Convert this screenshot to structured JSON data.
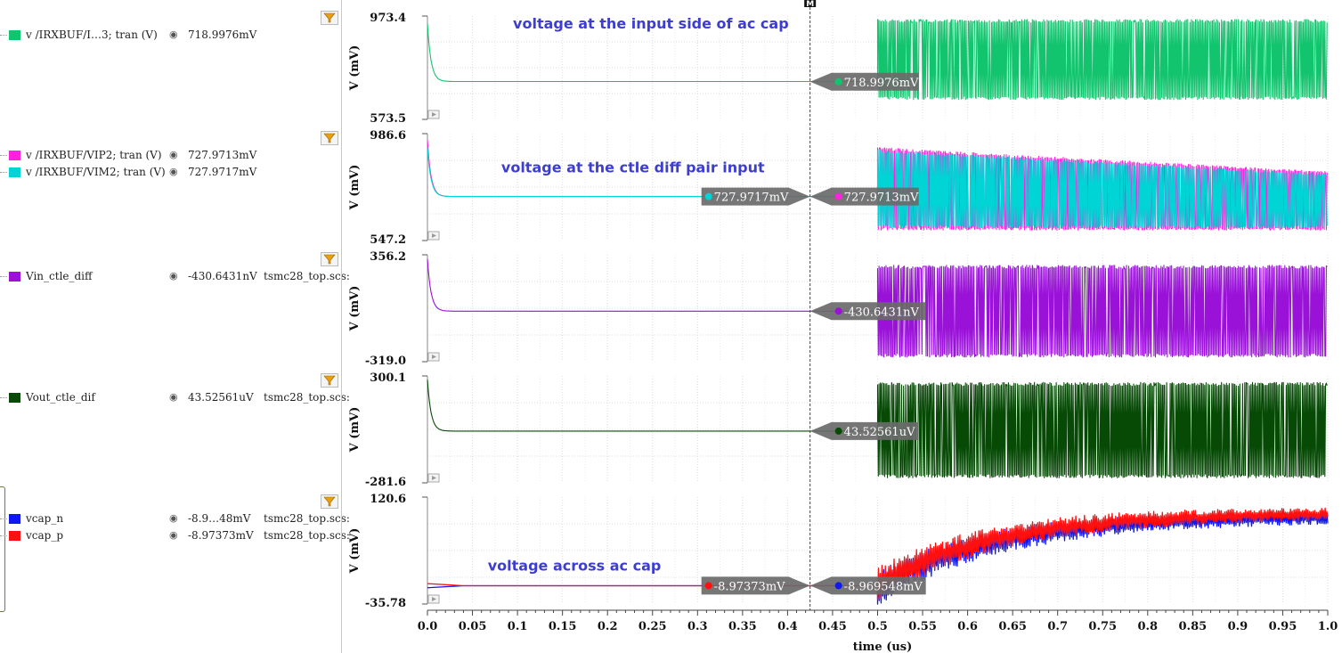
{
  "legend": {
    "strips": [
      {
        "entries": [
          {
            "name": "v /IRXBUF/I…3; tran (V)",
            "value": "718.9976mV",
            "source": "",
            "color": "#13c46e"
          }
        ]
      },
      {
        "entries": [
          {
            "name": "v /IRXBUF/VIP2; tran (V)",
            "value": "727.9713mV",
            "source": "",
            "color": "#ff22dd"
          },
          {
            "name": "v /IRXBUF/VIM2; tran (V)",
            "value": "727.9717mV",
            "source": "",
            "color": "#00d4d4"
          }
        ]
      },
      {
        "entries": [
          {
            "name": "Vin_ctle_diff",
            "value": "-430.6431nV",
            "source": "tsmc28_top.scs:",
            "color": "#9a11d8"
          }
        ]
      },
      {
        "entries": [
          {
            "name": "Vout_ctle_dif",
            "value": "43.52561uV",
            "source": "tsmc28_top.scs:",
            "color": "#064a06"
          }
        ]
      },
      {
        "entries": [
          {
            "name": "vcap_n",
            "value": "-8.9…48mV",
            "source": "tsmc28_top.scs:",
            "color": "#0f18ee"
          },
          {
            "name": "vcap_p",
            "value": "-8.97373mV",
            "source": "tsmc28_top.scs:",
            "color": "#ff1010"
          }
        ]
      }
    ]
  },
  "cursor_label": "M",
  "chart_data": {
    "type": "line",
    "xlabel": "time (us)",
    "xlim": [
      0.0,
      1.0
    ],
    "xticks": [
      "0.0",
      "0.05",
      "0.1",
      "0.15",
      "0.2",
      "0.25",
      "0.3",
      "0.35",
      "0.4",
      "0.45",
      "0.5",
      "0.55",
      "0.6",
      "0.65",
      "0.7",
      "0.75",
      "0.8",
      "0.85",
      "0.9",
      "0.95",
      "1.0"
    ],
    "cursor_x": 0.425,
    "strips": [
      {
        "ylabel": "V (mV)",
        "ymin": 573.5,
        "ymax": 973.4,
        "ymin_label": "573.5",
        "ymax_label": "973.4",
        "annotation": {
          "text": "voltage at the input side of ac cap",
          "x": 0.095,
          "y": 890
        },
        "series": [
          {
            "color": "#13c46e",
            "style": "dc",
            "spike": 945,
            "settle": 720,
            "lo": 650,
            "hi": 960,
            "drift_lo": 0,
            "drift_hi": 0
          }
        ],
        "markers": [
          {
            "label": "718.9976mV",
            "color": "#13c46e",
            "y": 718.9976,
            "side": "right"
          }
        ]
      },
      {
        "ylabel": "V (mV)",
        "ymin": 547.2,
        "ymax": 986.6,
        "ymin_label": "547.2",
        "ymax_label": "986.6",
        "annotation": {
          "text": "voltage at the ctle diff pair input",
          "x": 0.082,
          "y": 790
        },
        "series": [
          {
            "color": "#ff22dd",
            "style": "dc",
            "spike": 960,
            "settle": 728,
            "lo": 590,
            "hi": 930,
            "drift_lo": 0,
            "drift_hi": -100
          },
          {
            "color": "#00d4d4",
            "style": "dc",
            "spike": 930,
            "settle": 728,
            "lo": 600,
            "hi": 920,
            "drift_lo": 0,
            "drift_hi": -100
          }
        ],
        "markers": [
          {
            "label": "727.9717mV",
            "color": "#00d4d4",
            "y": 727.9717,
            "side": "left"
          },
          {
            "label": "727.9713mV",
            "color": "#ff22dd",
            "y": 727.9713,
            "side": "right"
          }
        ]
      },
      {
        "ylabel": "V (mV)",
        "ymin": -319.0,
        "ymax": 356.2,
        "ymin_label": "-319.0",
        "ymax_label": "356.2",
        "series": [
          {
            "color": "#9a11d8",
            "style": "dc",
            "spike": 330,
            "settle": 0,
            "lo": -290,
            "hi": 290,
            "drift_lo": 0,
            "drift_hi": 0
          }
        ],
        "markers": [
          {
            "label": "-430.6431nV",
            "color": "#9a11d8",
            "y": -0.0004,
            "side": "right"
          }
        ]
      },
      {
        "ylabel": "V (mV)",
        "ymin": -281.6,
        "ymax": 300.1,
        "ymin_label": "-281.6",
        "ymax_label": "300.1",
        "series": [
          {
            "color": "#064a06",
            "style": "dc",
            "spike": 280,
            "settle": 0,
            "lo": -255,
            "hi": 265,
            "drift_lo": 0,
            "drift_hi": 0
          }
        ],
        "markers": [
          {
            "label": "43.52561uV",
            "color": "#064a06",
            "y": 0.04,
            "side": "right"
          }
        ]
      },
      {
        "ylabel": "V (mV)",
        "ymin": -35.78,
        "ymax": 120.6,
        "ymin_label": "-35.78",
        "ymax_label": "120.6",
        "annotation": {
          "text": "voltage across ac cap",
          "x": 0.067,
          "y": 0
        },
        "series": [
          {
            "color": "#0f18ee",
            "style": "cap",
            "flat": -9.0
          },
          {
            "color": "#ff1010",
            "style": "cap",
            "flat": -9.0
          }
        ],
        "markers": [
          {
            "label": "-8.97373mV",
            "color": "#ff1010",
            "y": -8.97373,
            "side": "left"
          },
          {
            "label": "-8.969548mV",
            "color": "#0f18ee",
            "y": -8.969548,
            "side": "right"
          }
        ]
      }
    ]
  }
}
